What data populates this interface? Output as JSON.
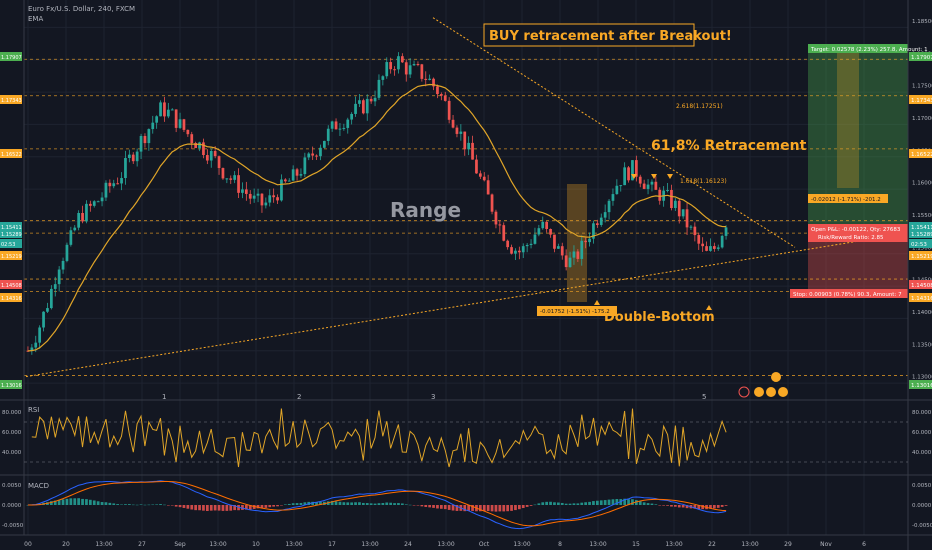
{
  "header": {
    "symbol": "Euro Fx/U.S. Dollar, 240, FXCM",
    "indicator": "EMA"
  },
  "annotations": {
    "title": "BUY retracement after Breakout!",
    "retracement": "61,8% Retracement",
    "range": "Range",
    "double_bottom": "Double-Bottom",
    "fib_2618": "2.618(1.17251)",
    "fib_1618": "1.618(1.16123)",
    "target_box": "Target: 0.02578 (2.23%) 257.8, Amount: 1",
    "fib_box": "-0.02012 (-1.71%) -201.2",
    "open_pl": "Open P&L: -0.00122, Qty: 27683",
    "rr_ratio": "Risk/Reward Ratio: 2.85",
    "stop_box": "Stop: 0.00903 (0.78%) 90.3, Amount: 7",
    "range_box": "-0.01752 (-1.51%) -175.2",
    "wave_labels": [
      "1",
      "2",
      "3",
      "5"
    ]
  },
  "price_axis": {
    "ticks": [
      "1.18500",
      "1.18000",
      "1.17500",
      "1.17000",
      "1.16500",
      "1.16000",
      "1.15500",
      "1.15000",
      "1.14500",
      "1.14000",
      "1.13500",
      "1.13000"
    ],
    "badges": [
      {
        "text": "1.17907",
        "color": "#4caf50"
      },
      {
        "text": "1.17343",
        "color": "#f9a825"
      },
      {
        "text": "1.16522",
        "color": "#f9a825"
      },
      {
        "text": "1.15411",
        "color": "#26a69a"
      },
      {
        "text": "1.15289",
        "color": "#26a69a"
      },
      {
        "text": "02:53",
        "color": "#26a69a"
      },
      {
        "text": "1.15219",
        "color": "#f9a825"
      },
      {
        "text": "1.14508",
        "color": "#ef5350"
      },
      {
        "text": "1.14316",
        "color": "#f9a825"
      },
      {
        "text": "1.13016",
        "color": "#4caf50"
      }
    ]
  },
  "rsi": {
    "label": "RSI",
    "ticks": [
      "80.000",
      "60.000",
      "40.000"
    ]
  },
  "macd": {
    "label": "MACD",
    "ticks": [
      "0.0050",
      "0.0000",
      "-0.0050"
    ]
  },
  "time_axis": [
    "00",
    "20",
    "13:00",
    "27",
    "Sep",
    "13:00",
    "10",
    "13:00",
    "17",
    "13:00",
    "24",
    "13:00",
    "Oct",
    "13:00",
    "8",
    "13:00",
    "15",
    "13:00",
    "22",
    "13:00",
    "29",
    "Nov",
    "6"
  ],
  "colors": {
    "background": "#131722",
    "grid": "#1e2330",
    "up": "#26a69a",
    "down": "#ef5350",
    "ema": "#e0a528",
    "annotation": "#f9a825",
    "target_zone": "#4caf50",
    "stop_zone": "#ef5350"
  },
  "chart_data": {
    "type": "candlestick",
    "timeframe": "240",
    "ylim": [
      1.127,
      1.187
    ],
    "close_series": [
      1.134,
      1.1372,
      1.1418,
      1.1475,
      1.1505,
      1.1548,
      1.156,
      1.1575,
      1.1595,
      1.161,
      1.164,
      1.1665,
      1.169,
      1.1715,
      1.1705,
      1.1685,
      1.1668,
      1.1655,
      1.164,
      1.1618,
      1.1602,
      1.1588,
      1.1572,
      1.1565,
      1.158,
      1.1596,
      1.161,
      1.1628,
      1.165,
      1.1672,
      1.169,
      1.17,
      1.1712,
      1.1722,
      1.1745,
      1.1775,
      1.179,
      1.1775,
      1.1772,
      1.176,
      1.174,
      1.1712,
      1.168,
      1.1645,
      1.1608,
      1.157,
      1.1532,
      1.1502,
      1.1492,
      1.1512,
      1.1535,
      1.151,
      1.1488,
      1.1476,
      1.15,
      1.1532,
      1.1562,
      1.159,
      1.1612,
      1.1622,
      1.1602,
      1.1585,
      1.158,
      1.1565,
      1.1542,
      1.1512,
      1.1488,
      1.15,
      1.154
    ],
    "trendline_resistance": {
      "start": 1.1855,
      "end": 1.15
    },
    "trendline_support": {
      "start": 1.13,
      "end": 1.152
    },
    "levels": [
      1.17907,
      1.17343,
      1.16522,
      1.15411,
      1.15219,
      1.14508,
      1.14316,
      1.13016
    ],
    "rsi_levels": [
      70,
      30
    ],
    "rsi_ylim": [
      20,
      90
    ],
    "macd_ylim": [
      -0.007,
      0.007
    ]
  }
}
